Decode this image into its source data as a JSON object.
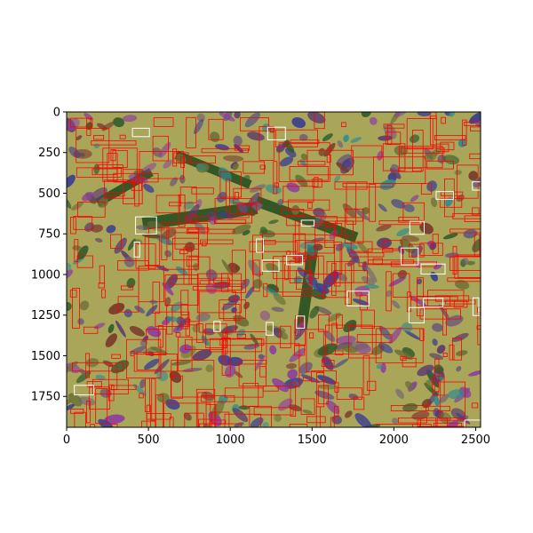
{
  "figure": {
    "x_axis": {
      "ticks": [
        0,
        500,
        1000,
        1500,
        2000,
        2500
      ],
      "range": [
        0,
        2530
      ]
    },
    "y_axis": {
      "ticks": [
        0,
        250,
        500,
        750,
        1000,
        1250,
        1500,
        1750
      ],
      "range": [
        0,
        1940
      ],
      "inverted": true
    },
    "colors": {
      "background_field": "#a9a65a",
      "detection_box": "#ff0000",
      "secondary_box": "#ffffff",
      "object_palette": [
        "#3b3f8f",
        "#8d3f9c",
        "#2f8b8e",
        "#2f5a2a",
        "#7a3b2c",
        "#6b6f34",
        "#6f5e76",
        "#5d3c6d"
      ]
    }
  }
}
